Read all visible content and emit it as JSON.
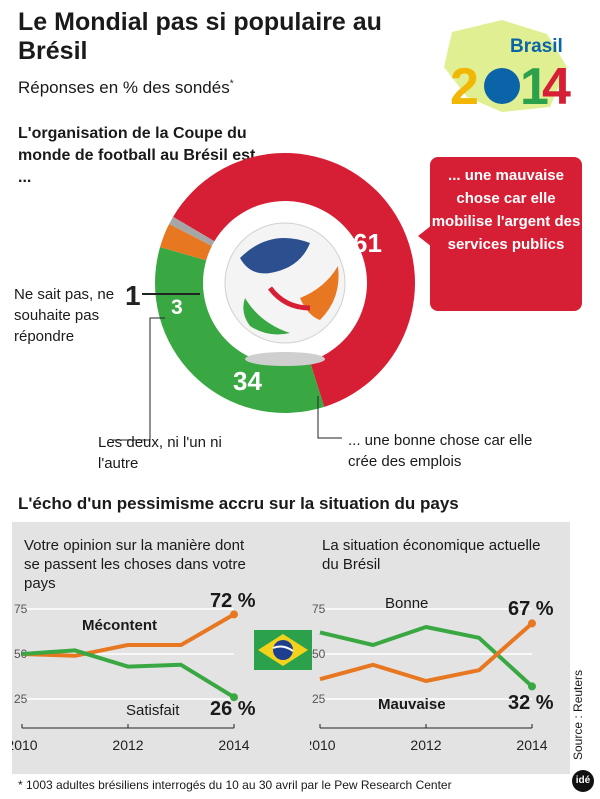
{
  "header": {
    "title": "Le Mondial pas si populaire au Brésil",
    "subtitle": "Réponses en % des sondés",
    "subtitle_mark": "*"
  },
  "logo": {
    "word": "Brasil",
    "year": "2014"
  },
  "donut": {
    "question": "L'organisation de la Coupe du monde de football au Brésil est ...",
    "callout": "... une mauvaise chose car elle mobilise l'argent des services publics",
    "labels": {
      "bad_value": "61",
      "good_value": "34",
      "both_value": "3",
      "dk_value": "1",
      "good": "... une bonne chose car elle crée des emplois",
      "both": "Les deux, ni l'un ni l'autre",
      "dk": "Ne sait pas, ne souhaite pas répondre"
    }
  },
  "section2": {
    "title": "L'écho d'un pessimisme accru sur la situation du pays"
  },
  "footer": {
    "note": "* 1003 adultes brésiliens interrogés du 10 au 30 avril par le Pew Research Center",
    "source": "Source : Reuters",
    "brand": "idé"
  },
  "colors": {
    "red": "#d61f35",
    "green": "#3aa842",
    "orange": "#e87722",
    "gray": "#a6a6a6"
  },
  "chart_data": [
    {
      "type": "pie",
      "title": "L'organisation de la Coupe du monde de football au Brésil est ...",
      "categories": [
        "... une mauvaise chose car elle mobilise l'argent des services publics",
        "... une bonne chose car elle crée des emplois",
        "Les deux, ni l'un ni l'autre",
        "Ne sait pas, ne souhaite pas répondre"
      ],
      "values": [
        61,
        34,
        3,
        1
      ]
    },
    {
      "type": "line",
      "title": "Votre opinion sur la manière dont se passent les choses dans votre pays",
      "x": [
        2010,
        2011,
        2012,
        2013,
        2014
      ],
      "xticks": [
        "2010",
        "2012",
        "2014"
      ],
      "yticks": [
        "75",
        "50",
        "25"
      ],
      "ylim": [
        20,
        80
      ],
      "series": [
        {
          "name": "Mécontent",
          "values": [
            50,
            49,
            55,
            55,
            72
          ],
          "end_label": "72 %"
        },
        {
          "name": "Satisfait",
          "values": [
            50,
            52,
            43,
            44,
            26
          ],
          "end_label": "26 %"
        }
      ]
    },
    {
      "type": "line",
      "title": "La situation économique actuelle du Brésil",
      "x": [
        2010,
        2011,
        2012,
        2013,
        2014
      ],
      "xticks": [
        "2010",
        "2012",
        "2014"
      ],
      "yticks": [
        "75",
        "50",
        "25"
      ],
      "ylim": [
        20,
        80
      ],
      "series": [
        {
          "name": "Bonne",
          "values": [
            62,
            55,
            65,
            59,
            32
          ],
          "end_label": "32 %"
        },
        {
          "name": "Mauvaise",
          "values": [
            36,
            44,
            35,
            41,
            67
          ],
          "end_label": "67 %"
        }
      ]
    }
  ]
}
